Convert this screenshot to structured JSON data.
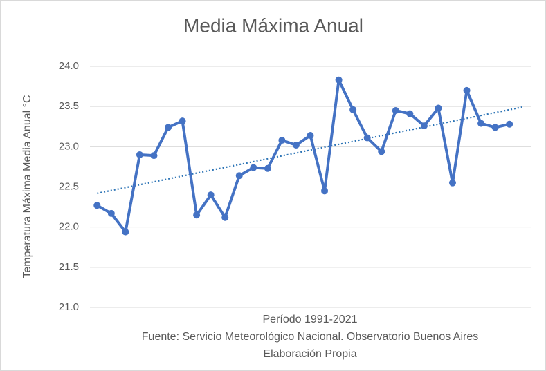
{
  "chart_data": {
    "type": "line",
    "title": "Media Máxima Anual",
    "ylabel": "Temperatura Máxima Media Anual °C",
    "xlabel_lines": [
      "Período 1991-2021",
      "Fuente: Servicio Meteorológico Nacional. Observatorio Buenos Aires",
      "Elaboración Propia"
    ],
    "series": [
      {
        "color": "#4472c4",
        "values": [
          22.27,
          22.17,
          21.94,
          22.9,
          22.89,
          23.24,
          23.32,
          22.15,
          22.4,
          22.12,
          22.64,
          22.74,
          22.73,
          23.08,
          23.02,
          23.14,
          22.45,
          23.83,
          23.46,
          23.11,
          22.94,
          23.45,
          23.41,
          23.26,
          23.48,
          22.55,
          23.7,
          23.29,
          23.24,
          23.28,
          null
        ]
      }
    ],
    "trendline": {
      "type": "linear",
      "color": "#2e75b6"
    },
    "ylim": [
      21,
      24
    ],
    "yticks": [
      {
        "value": 21,
        "label": "21.0"
      },
      21.5,
      {
        "value": 22,
        "label": "22.0"
      },
      22.5,
      {
        "value": 23,
        "label": "23.0"
      },
      23.5,
      {
        "value": 24,
        "label": "24.0"
      }
    ],
    "grid": true
  }
}
